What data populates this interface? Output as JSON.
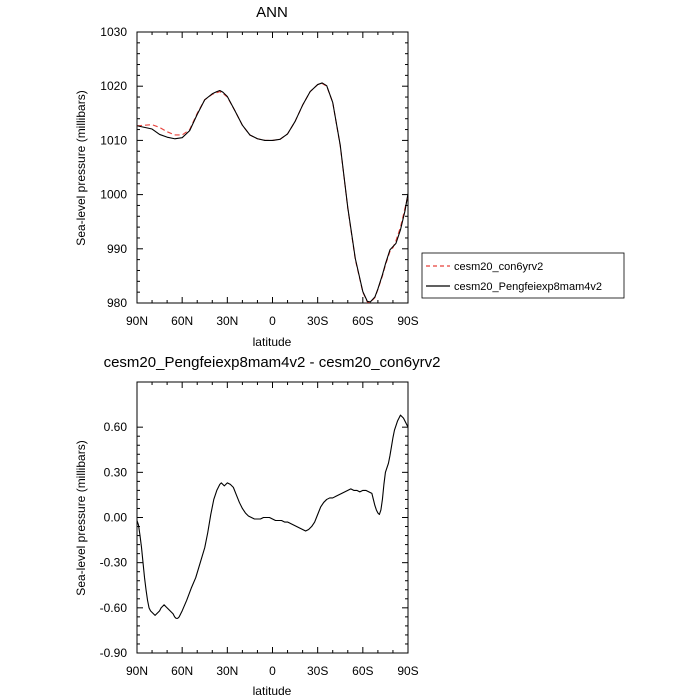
{
  "chart_data": [
    {
      "type": "line",
      "title": "ANN",
      "xlabel": "latitude",
      "ylabel": "Sea-level pressure (millibars)",
      "xlim": [
        90,
        -90
      ],
      "ylim": [
        980,
        1030
      ],
      "xticks": [
        90,
        60,
        30,
        0,
        -30,
        -60,
        -90
      ],
      "xtick_labels": [
        "90N",
        "60N",
        "30N",
        "0",
        "30S",
        "60S",
        "90S"
      ],
      "yticks": [
        980,
        990,
        1000,
        1010,
        1020,
        1030
      ],
      "ytick_labels": [
        "980",
        "990",
        "1000",
        "1010",
        "1020",
        "1030"
      ],
      "legend_position": "outside-right",
      "series": [
        {
          "name": "cesm20_con6yrv2",
          "color": "#e8413a",
          "dash": "dashed",
          "x": [
            90,
            85,
            80,
            75,
            70,
            65,
            60,
            55,
            50,
            45,
            40,
            37,
            35,
            33,
            30,
            25,
            20,
            15,
            10,
            5,
            0,
            -5,
            -10,
            -15,
            -20,
            -25,
            -30,
            -33,
            -36,
            -40,
            -45,
            -50,
            -55,
            -60,
            -63,
            -65,
            -68,
            -70,
            -73,
            -75,
            -78,
            -80,
            -82,
            -85,
            -88,
            -90
          ],
          "y": [
            1012.7,
            1012.8,
            1012.9,
            1012.4,
            1011.6,
            1011.0,
            1011.0,
            1012.0,
            1015.0,
            1017.5,
            1018.5,
            1018.8,
            1019.0,
            1018.7,
            1018.0,
            1015.5,
            1012.8,
            1011.0,
            1010.3,
            1010.0,
            1010.0,
            1010.2,
            1011.2,
            1013.5,
            1016.5,
            1019.0,
            1020.3,
            1020.5,
            1020.0,
            1017.0,
            1009.0,
            997.5,
            988.0,
            982.0,
            980.2,
            980.1,
            981.0,
            982.5,
            985.0,
            987.0,
            989.5,
            990.2,
            991.5,
            994.0,
            997.5,
            999.8
          ]
        },
        {
          "name": "cesm20_Pengfeiexp8mam4v2",
          "color": "#000000",
          "dash": "solid",
          "x": [
            90,
            85,
            80,
            75,
            70,
            65,
            60,
            55,
            50,
            45,
            40,
            37,
            35,
            33,
            30,
            25,
            20,
            15,
            10,
            5,
            0,
            -5,
            -10,
            -15,
            -20,
            -25,
            -30,
            -33,
            -36,
            -40,
            -45,
            -50,
            -55,
            -60,
            -63,
            -65,
            -68,
            -70,
            -73,
            -75,
            -78,
            -80,
            -82,
            -85,
            -88,
            -90
          ],
          "y": [
            1012.7,
            1012.4,
            1012.1,
            1011.1,
            1010.6,
            1010.3,
            1010.5,
            1011.8,
            1014.8,
            1017.5,
            1018.6,
            1019.0,
            1019.2,
            1018.9,
            1018.1,
            1015.5,
            1012.8,
            1011.0,
            1010.3,
            1010.0,
            1010.0,
            1010.2,
            1011.2,
            1013.5,
            1016.5,
            1019.0,
            1020.3,
            1020.6,
            1020.1,
            1017.0,
            1009.1,
            997.6,
            988.2,
            982.1,
            980.3,
            980.2,
            981.1,
            982.6,
            985.2,
            987.2,
            989.8,
            990.4,
            991.0,
            993.5,
            997.0,
            1000.2
          ]
        }
      ]
    },
    {
      "type": "line",
      "title": "cesm20_Pengfeiexp8mam4v2 - cesm20_con6yrv2",
      "xlabel": "latitude",
      "ylabel": "Sea-level pressure (millibars)",
      "xlim": [
        90,
        -90
      ],
      "ylim": [
        -0.9,
        0.9
      ],
      "xticks": [
        90,
        60,
        30,
        0,
        -30,
        -60,
        -90
      ],
      "xtick_labels": [
        "90N",
        "60N",
        "30N",
        "0",
        "30S",
        "60S",
        "90S"
      ],
      "yticks": [
        -0.9,
        -0.6,
        -0.3,
        0.0,
        0.3,
        0.6
      ],
      "ytick_labels": [
        "-0.90",
        "-0.60",
        "-0.30",
        "0.00",
        "0.30",
        "0.60"
      ],
      "series": [
        {
          "color": "#000000",
          "dash": "solid",
          "x": [
            90,
            89,
            88,
            87,
            86,
            85,
            84,
            83,
            82,
            81,
            80,
            79,
            78,
            77,
            76,
            75,
            74,
            73,
            72,
            71,
            70,
            69,
            68,
            67,
            66,
            65,
            64,
            63,
            62,
            61,
            60,
            57,
            54,
            51,
            48,
            45,
            43,
            41,
            39,
            38,
            37,
            36,
            35,
            34,
            33,
            32,
            31,
            30,
            28,
            26,
            24,
            22,
            20,
            18,
            16,
            14,
            12,
            10,
            8,
            6,
            4,
            2,
            0,
            -2,
            -4,
            -6,
            -8,
            -10,
            -12,
            -14,
            -16,
            -18,
            -20,
            -22,
            -24,
            -26,
            -28,
            -30,
            -32,
            -34,
            -36,
            -38,
            -40,
            -42,
            -44,
            -46,
            -48,
            -50,
            -52,
            -54,
            -56,
            -58,
            -60,
            -62,
            -64,
            -66,
            -67,
            -68,
            -69,
            -70,
            -71,
            -72,
            -73,
            -74,
            -75,
            -76,
            -77,
            -78,
            -79,
            -80,
            -81,
            -82,
            -83,
            -84,
            -85,
            -86,
            -87,
            -88,
            -89,
            -90
          ],
          "y": [
            -0.02,
            -0.05,
            -0.12,
            -0.2,
            -0.3,
            -0.4,
            -0.48,
            -0.55,
            -0.6,
            -0.62,
            -0.63,
            -0.64,
            -0.65,
            -0.64,
            -0.63,
            -0.62,
            -0.6,
            -0.59,
            -0.58,
            -0.59,
            -0.6,
            -0.61,
            -0.62,
            -0.63,
            -0.64,
            -0.66,
            -0.67,
            -0.67,
            -0.66,
            -0.64,
            -0.62,
            -0.55,
            -0.47,
            -0.4,
            -0.3,
            -0.2,
            -0.1,
            0.02,
            0.12,
            0.15,
            0.18,
            0.2,
            0.22,
            0.23,
            0.22,
            0.21,
            0.22,
            0.23,
            0.22,
            0.2,
            0.15,
            0.1,
            0.06,
            0.03,
            0.01,
            0.0,
            -0.01,
            -0.01,
            -0.01,
            0.0,
            0.0,
            0.0,
            -0.01,
            -0.02,
            -0.02,
            -0.02,
            -0.03,
            -0.03,
            -0.04,
            -0.05,
            -0.06,
            -0.07,
            -0.08,
            -0.09,
            -0.08,
            -0.06,
            -0.03,
            0.02,
            0.07,
            0.1,
            0.12,
            0.13,
            0.13,
            0.14,
            0.15,
            0.16,
            0.17,
            0.18,
            0.19,
            0.18,
            0.18,
            0.17,
            0.18,
            0.18,
            0.17,
            0.16,
            0.12,
            0.08,
            0.05,
            0.03,
            0.02,
            0.05,
            0.12,
            0.22,
            0.3,
            0.33,
            0.36,
            0.41,
            0.47,
            0.53,
            0.58,
            0.61,
            0.64,
            0.66,
            0.68,
            0.67,
            0.66,
            0.64,
            0.62,
            0.6
          ]
        }
      ]
    }
  ]
}
